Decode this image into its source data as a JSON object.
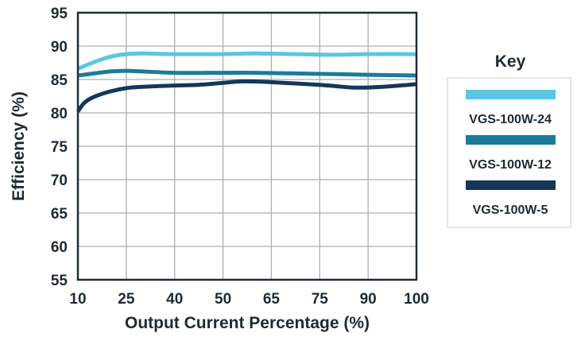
{
  "chart_data": {
    "type": "line",
    "xlabel": "Output Current Percentage (%)",
    "ylabel": "Efficiency (%)",
    "x_ticks": [
      "10",
      "25",
      "40",
      "50",
      "65",
      "75",
      "90",
      "100"
    ],
    "y_ticks": [
      "95",
      "90",
      "85",
      "80",
      "75",
      "70",
      "65",
      "60",
      "55"
    ],
    "ylim": [
      55,
      95
    ],
    "grid": true,
    "legend_title": "Key",
    "legend_position": "right",
    "series": [
      {
        "name": "VGS-100W-24",
        "color": "#5bc6e2",
        "x": [
          10,
          15,
          20,
          25,
          30,
          40,
          50,
          60,
          70,
          80,
          90,
          100
        ],
        "values": [
          86.6,
          87.6,
          88.4,
          88.8,
          88.9,
          88.8,
          88.8,
          88.9,
          88.8,
          88.7,
          88.8,
          88.8
        ]
      },
      {
        "name": "VGS-100W-12",
        "color": "#1b7b9a",
        "x": [
          10,
          15,
          20,
          25,
          30,
          40,
          50,
          60,
          70,
          80,
          90,
          100
        ],
        "values": [
          85.6,
          85.9,
          86.2,
          86.3,
          86.2,
          86.0,
          86.0,
          86.0,
          85.9,
          85.8,
          85.7,
          85.6
        ]
      },
      {
        "name": "VGS-100W-5",
        "color": "#14375a",
        "x": [
          10,
          12,
          15,
          20,
          25,
          30,
          40,
          45,
          50,
          55,
          60,
          65,
          70,
          75,
          80,
          85,
          90,
          95,
          100
        ],
        "values": [
          80.2,
          81.5,
          82.4,
          83.2,
          83.7,
          83.9,
          84.1,
          84.2,
          84.5,
          84.7,
          84.7,
          84.6,
          84.4,
          84.2,
          84.0,
          83.8,
          83.8,
          84.0,
          84.3
        ]
      }
    ]
  }
}
